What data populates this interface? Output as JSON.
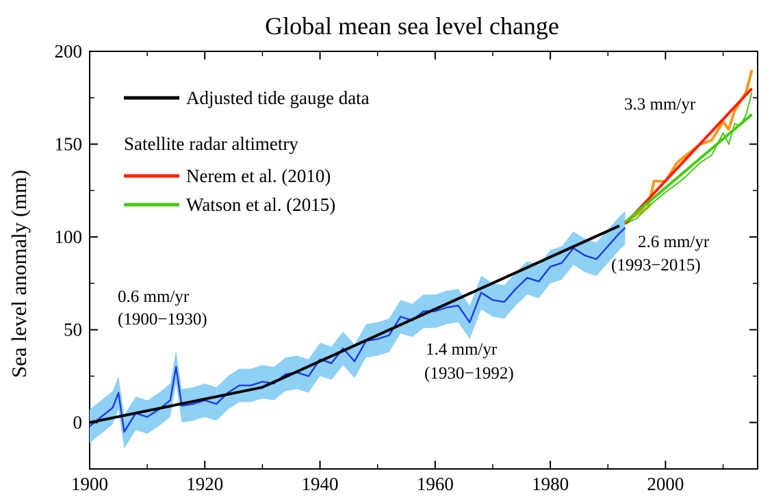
{
  "chart_data": {
    "type": "line",
    "title": "Global mean sea level change",
    "xlabel": "",
    "ylabel": "Sea level anomaly (mm)",
    "xlim": [
      1900,
      2016
    ],
    "ylim": [
      -25,
      200
    ],
    "x_ticks": [
      1900,
      1920,
      1940,
      1960,
      1980,
      2000
    ],
    "y_ticks": [
      0,
      50,
      100,
      150,
      200
    ],
    "grid": false,
    "legend": {
      "placement": "top-left",
      "tide_label": "Adjusted tide gauge data",
      "satellite_heading": "Satellite radar altimetry",
      "nerem_label": "Nerem et al. (2010)",
      "watson_label": "Watson et al. (2015)"
    },
    "colors": {
      "tide_gauge_raw": "#1f3fe6",
      "uncertainty_band": "#8fd0f5",
      "trend": "#000000",
      "nerem": "#ff2200",
      "nerem_raw": "#f39a1a",
      "watson": "#44cc11"
    },
    "annotations": {
      "rate_early": "0.6 mm/yr",
      "period_early": "(1900−1930)",
      "rate_mid": "1.4 mm/yr",
      "period_mid": "(1930−1992)",
      "rate_nerem": "3.3 mm/yr",
      "rate_watson": "2.6 mm/yr",
      "period_satellite": "(1993−2015)"
    },
    "series": [
      {
        "name": "Adjusted tide gauge data",
        "kind": "trend",
        "x": [
          1900,
          1930,
          1992
        ],
        "y": [
          0,
          19,
          106
        ]
      },
      {
        "name": "",
        "kind": "tide_gauge_monthly",
        "x": [
          1900,
          1902,
          1904,
          1905,
          1906,
          1908,
          1910,
          1912,
          1914,
          1915,
          1916,
          1918,
          1920,
          1922,
          1924,
          1926,
          1928,
          1930,
          1932,
          1934,
          1936,
          1938,
          1940,
          1942,
          1944,
          1946,
          1948,
          1950,
          1952,
          1954,
          1956,
          1958,
          1960,
          1962,
          1964,
          1966,
          1968,
          1970,
          1972,
          1974,
          1976,
          1978,
          1980,
          1982,
          1984,
          1986,
          1988,
          1990,
          1992,
          1993
        ],
        "y": [
          -2,
          3,
          8,
          16,
          -5,
          5,
          3,
          7,
          12,
          30,
          9,
          10,
          12,
          10,
          16,
          20,
          20,
          22,
          21,
          26,
          27,
          25,
          34,
          32,
          40,
          33,
          44,
          45,
          47,
          57,
          55,
          60,
          60,
          62,
          63,
          54,
          70,
          66,
          65,
          72,
          78,
          76,
          84,
          86,
          94,
          90,
          88,
          95,
          102,
          105
        ],
        "band": 9
      },
      {
        "name": "Nerem et al. (2010)",
        "kind": "satellite_trend",
        "x": [
          1993,
          2015
        ],
        "y": [
          107,
          180
        ]
      },
      {
        "name": "",
        "kind": "satellite_raw",
        "x": [
          1993,
          1995,
          1997,
          1998,
          2000,
          2002,
          2004,
          2006,
          2008,
          2010,
          2011,
          2012,
          2014,
          2015
        ],
        "y": [
          108,
          112,
          116,
          130,
          130,
          140,
          145,
          150,
          152,
          162,
          158,
          168,
          178,
          190
        ]
      },
      {
        "name": "Watson et al. (2015)",
        "kind": "satellite_trend",
        "x": [
          1993,
          2015
        ],
        "y": [
          108,
          166
        ]
      },
      {
        "name": "",
        "kind": "satellite_raw_watson",
        "x": [
          1993,
          1995,
          1998,
          2000,
          2003,
          2006,
          2008,
          2010,
          2011,
          2012,
          2013,
          2014,
          2015
        ],
        "y": [
          107,
          110,
          119,
          124,
          131,
          140,
          144,
          156,
          150,
          161,
          160,
          166,
          178
        ]
      }
    ]
  }
}
